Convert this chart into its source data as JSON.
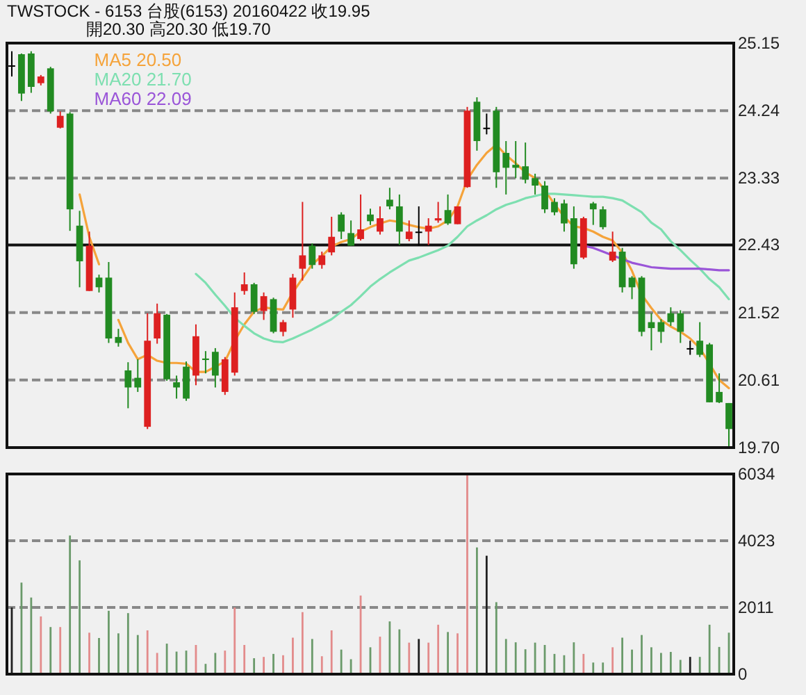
{
  "chart_data": [
    {
      "type": "candlestick",
      "title": "TWSTOCK - 6153 台股(6153) 20160422 收19.95",
      "subtitle": "開20.30 高20.30 低19.70",
      "categories": [
        null,
        null,
        null,
        null,
        null,
        null,
        null,
        null,
        null,
        null,
        null,
        null,
        null,
        null,
        null,
        null,
        null,
        null,
        null,
        null,
        null,
        null,
        null,
        null,
        null,
        null,
        null,
        null,
        null,
        null,
        null,
        null,
        null,
        null,
        null,
        null,
        null,
        null,
        null,
        null,
        null,
        null,
        null,
        null,
        null,
        null,
        null,
        null,
        null,
        null,
        null,
        null,
        null,
        null,
        null,
        null,
        null,
        null,
        null,
        null,
        null,
        null,
        null,
        null,
        null,
        null,
        null,
        null,
        null,
        null,
        null,
        null,
        null,
        null,
        null
      ],
      "ohlc": [
        [
          24.85,
          25.04,
          24.7,
          24.85
        ],
        [
          25.0,
          25.01,
          24.37,
          24.47
        ],
        [
          25.01,
          25.04,
          24.48,
          24.56
        ],
        [
          24.61,
          24.72,
          24.58,
          24.7
        ],
        [
          24.81,
          24.83,
          24.2,
          24.23
        ],
        [
          24.01,
          24.23,
          24.0,
          24.17
        ],
        [
          24.2,
          24.22,
          22.62,
          22.91
        ],
        [
          22.69,
          22.89,
          21.86,
          22.21
        ],
        [
          21.81,
          22.61,
          21.81,
          22.42
        ],
        [
          21.99,
          22.03,
          21.79,
          21.86
        ],
        [
          21.99,
          22.2,
          21.11,
          21.17
        ],
        [
          21.19,
          21.3,
          21.06,
          21.11
        ],
        [
          20.74,
          20.85,
          20.23,
          20.51
        ],
        [
          20.64,
          20.89,
          20.45,
          20.51
        ],
        [
          19.98,
          21.51,
          19.95,
          21.14
        ],
        [
          21.17,
          21.64,
          21.1,
          21.51
        ],
        [
          21.49,
          21.5,
          20.6,
          20.62
        ],
        [
          20.58,
          20.67,
          20.36,
          20.51
        ],
        [
          20.79,
          20.86,
          20.33,
          20.36
        ],
        [
          20.67,
          21.36,
          20.54,
          21.2
        ],
        [
          20.9,
          21.0,
          20.7,
          20.88
        ],
        [
          20.99,
          21.04,
          20.51,
          20.67
        ],
        [
          20.45,
          20.92,
          20.41,
          20.89
        ],
        [
          20.71,
          21.79,
          20.67,
          21.59
        ],
        [
          21.81,
          22.06,
          21.76,
          21.9
        ],
        [
          21.9,
          21.92,
          21.5,
          21.53
        ],
        [
          21.54,
          21.79,
          21.42,
          21.74
        ],
        [
          21.7,
          21.72,
          21.24,
          21.26
        ],
        [
          21.26,
          21.42,
          21.2,
          21.39
        ],
        [
          21.56,
          22.04,
          21.45,
          21.99
        ],
        [
          22.11,
          23.01,
          21.95,
          22.29
        ],
        [
          22.42,
          22.45,
          22.11,
          22.16
        ],
        [
          22.16,
          22.34,
          22.11,
          22.29
        ],
        [
          22.33,
          22.81,
          22.29,
          22.54
        ],
        [
          22.84,
          22.87,
          22.51,
          22.61
        ],
        [
          22.59,
          22.76,
          22.42,
          22.42
        ],
        [
          22.51,
          23.11,
          22.49,
          22.64
        ],
        [
          22.84,
          22.92,
          22.7,
          22.75
        ],
        [
          22.61,
          22.95,
          22.57,
          22.79
        ],
        [
          23.04,
          23.2,
          22.91,
          22.95
        ],
        [
          22.95,
          23.11,
          22.43,
          22.61
        ],
        [
          22.51,
          22.76,
          22.48,
          22.61
        ],
        [
          22.61,
          22.95,
          22.42,
          22.61
        ],
        [
          22.61,
          22.79,
          22.43,
          22.69
        ],
        [
          22.76,
          23.01,
          22.73,
          22.79
        ],
        [
          22.9,
          23.11,
          22.7,
          22.72
        ],
        [
          22.71,
          22.95,
          22.71,
          22.95
        ],
        [
          23.21,
          24.29,
          23.2,
          24.24
        ],
        [
          24.36,
          24.42,
          23.7,
          23.83
        ],
        [
          24.01,
          24.2,
          23.92,
          24.01
        ],
        [
          24.24,
          24.29,
          23.2,
          23.41
        ],
        [
          23.67,
          23.83,
          23.11,
          23.47
        ],
        [
          23.51,
          23.83,
          23.33,
          23.47
        ],
        [
          23.49,
          23.81,
          23.26,
          23.31
        ],
        [
          23.33,
          23.39,
          23.11,
          23.23
        ],
        [
          23.23,
          23.29,
          22.86,
          22.91
        ],
        [
          23.01,
          23.06,
          22.83,
          22.87
        ],
        [
          22.99,
          23.04,
          22.61,
          22.72
        ],
        [
          22.79,
          22.95,
          22.11,
          22.17
        ],
        [
          22.26,
          22.81,
          22.24,
          22.79
        ],
        [
          22.99,
          23.01,
          22.7,
          22.91
        ],
        [
          22.91,
          22.95,
          22.64,
          22.67
        ],
        [
          22.22,
          22.61,
          22.2,
          22.34
        ],
        [
          22.34,
          22.39,
          21.79,
          21.86
        ],
        [
          21.99,
          22.01,
          21.7,
          21.86
        ],
        [
          21.99,
          22.01,
          21.2,
          21.26
        ],
        [
          21.39,
          21.51,
          21.01,
          21.31
        ],
        [
          21.39,
          21.43,
          21.11,
          21.26
        ],
        [
          21.51,
          21.59,
          21.34,
          21.39
        ],
        [
          21.51,
          21.55,
          21.11,
          21.26
        ],
        [
          21.04,
          21.14,
          20.95,
          21.04
        ],
        [
          21.14,
          21.39,
          20.92,
          20.95
        ],
        [
          21.09,
          21.11,
          20.31,
          20.31
        ],
        [
          20.45,
          20.7,
          20.3,
          20.31
        ],
        [
          20.3,
          20.3,
          19.7,
          19.95
        ]
      ],
      "colors": [
        "#000000",
        "#228b22",
        "#228b22",
        "#dd2020",
        "#228b22",
        "#dd2020",
        "#228b22",
        "#228b22",
        "#dd2020",
        "#228b22",
        "#228b22",
        "#228b22",
        "#228b22",
        "#228b22",
        "#dd2020",
        "#dd2020",
        "#228b22",
        "#228b22",
        "#228b22",
        "#dd2020",
        "#228b22",
        "#228b22",
        "#dd2020",
        "#dd2020",
        "#dd2020",
        "#228b22",
        "#dd2020",
        "#228b22",
        "#dd2020",
        "#dd2020",
        "#dd2020",
        "#228b22",
        "#dd2020",
        "#dd2020",
        "#228b22",
        "#228b22",
        "#dd2020",
        "#228b22",
        "#dd2020",
        "#228b22",
        "#228b22",
        "#dd2020",
        "#000000",
        "#dd2020",
        "#dd2020",
        "#228b22",
        "#dd2020",
        "#dd2020",
        "#228b22",
        "#000000",
        "#228b22",
        "#228b22",
        "#228b22",
        "#228b22",
        "#228b22",
        "#228b22",
        "#228b22",
        "#228b22",
        "#228b22",
        "#dd2020",
        "#228b22",
        "#228b22",
        "#dd2020",
        "#228b22",
        "#228b22",
        "#228b22",
        "#228b22",
        "#228b22",
        "#228b22",
        "#228b22",
        "#000000",
        "#228b22",
        "#228b22",
        "#228b22",
        "#228b22"
      ],
      "series": [
        {
          "name": "MA5 20.50",
          "type": "line",
          "color": "#f5a33a",
          "values": [
            null,
            null,
            null,
            null,
            null,
            null,
            null,
            23.11,
            22.54,
            22.17,
            null,
            21.42,
            21.11,
            20.89,
            20.95,
            20.87,
            20.84,
            20.84,
            20.83,
            20.72,
            20.72,
            20.79,
            20.86,
            21.14,
            21.36,
            21.53,
            21.59,
            21.57,
            21.56,
            21.79,
            21.98,
            22.17,
            22.28,
            22.41,
            22.47,
            22.51,
            22.61,
            22.67,
            22.72,
            22.76,
            22.74,
            22.7,
            22.67,
            22.65,
            22.68,
            22.76,
            22.95,
            23.31,
            23.51,
            23.67,
            23.78,
            23.64,
            23.53,
            23.41,
            23.33,
            23.17,
            22.98,
            22.81,
            22.68,
            22.66,
            22.61,
            22.54,
            22.49,
            22.33,
            22.08,
            21.76,
            21.58,
            21.42,
            21.33,
            21.26,
            21.17,
            21.04,
            20.83,
            20.61,
            20.5
          ]
        },
        {
          "name": "MA20 21.70",
          "type": "line",
          "color": "#7ddfb0",
          "values": [
            null,
            null,
            null,
            null,
            null,
            null,
            null,
            null,
            null,
            null,
            null,
            null,
            null,
            null,
            null,
            null,
            null,
            null,
            null,
            22.04,
            21.92,
            21.76,
            21.61,
            21.45,
            21.34,
            21.24,
            21.17,
            21.13,
            21.12,
            21.17,
            21.23,
            21.29,
            21.36,
            21.43,
            21.53,
            21.62,
            21.74,
            21.87,
            21.97,
            22.06,
            22.14,
            22.22,
            22.26,
            22.31,
            22.36,
            22.42,
            22.54,
            22.68,
            22.76,
            22.83,
            22.91,
            22.97,
            23.01,
            23.06,
            23.09,
            23.12,
            23.12,
            23.11,
            23.1,
            23.09,
            23.08,
            23.08,
            23.06,
            23.03,
            22.95,
            22.87,
            22.73,
            22.64,
            22.48,
            22.36,
            22.23,
            22.11,
            21.97,
            21.86,
            21.7
          ]
        },
        {
          "name": "MA60 22.09",
          "type": "line",
          "color": "#9a55d8",
          "values": [
            null,
            null,
            null,
            null,
            null,
            null,
            null,
            null,
            null,
            null,
            null,
            null,
            null,
            null,
            null,
            null,
            null,
            null,
            null,
            null,
            null,
            null,
            null,
            null,
            null,
            null,
            null,
            null,
            null,
            null,
            null,
            null,
            null,
            null,
            null,
            null,
            null,
            null,
            null,
            null,
            null,
            null,
            null,
            null,
            null,
            null,
            null,
            null,
            null,
            null,
            null,
            null,
            null,
            null,
            null,
            null,
            null,
            null,
            null,
            22.42,
            22.39,
            22.34,
            22.29,
            22.24,
            22.19,
            22.16,
            22.13,
            22.12,
            22.11,
            22.11,
            22.11,
            22.11,
            22.1,
            22.09,
            22.09
          ]
        }
      ],
      "ylim": [
        19.7,
        25.15
      ],
      "yticks": [
        {
          "value": 19.7,
          "label": "19.70"
        },
        20.61,
        21.52,
        22.43,
        23.33,
        24.24,
        25.15
      ],
      "ref_lines": [
        {
          "axis": "y",
          "value": 22.43,
          "color": "#111111",
          "line_style": "solid"
        }
      ],
      "grid": "y",
      "legend": "top left",
      "tick_labels": "y"
    },
    {
      "type": "bar",
      "categories": [
        null,
        null,
        null,
        null,
        null,
        null,
        null,
        null,
        null,
        null,
        null,
        null,
        null,
        null,
        null,
        null,
        null,
        null,
        null,
        null,
        null,
        null,
        null,
        null,
        null,
        null,
        null,
        null,
        null,
        null,
        null,
        null,
        null,
        null,
        null,
        null,
        null,
        null,
        null,
        null,
        null,
        null,
        null,
        null,
        null,
        null,
        null,
        null,
        null,
        null,
        null,
        null,
        null,
        null,
        null,
        null,
        null,
        null,
        null,
        null,
        null,
        null,
        null,
        null,
        null,
        null,
        null,
        null,
        null,
        null,
        null,
        null,
        null,
        null,
        null
      ],
      "values": [
        2010,
        2760,
        2310,
        1740,
        1420,
        1420,
        4180,
        3430,
        1250,
        1090,
        1910,
        1230,
        1840,
        1180,
        1320,
        640,
        920,
        680,
        710,
        880,
        310,
        640,
        710,
        2010,
        880,
        480,
        520,
        610,
        570,
        1100,
        1870,
        1060,
        540,
        1320,
        740,
        450,
        2370,
        810,
        1130,
        1590,
        1350,
        950,
        1060,
        950,
        1490,
        1270,
        1230,
        6030,
        3820,
        3570,
        2170,
        1060,
        960,
        750,
        950,
        880,
        610,
        570,
        960,
        610,
        350,
        350,
        810,
        1100,
        740,
        1180,
        810,
        640,
        670,
        430,
        520,
        520,
        1490,
        820,
        1250
      ],
      "colors": [
        "#202020",
        "#6a9a6a",
        "#6a9a6a",
        "#e38b8b",
        "#6a9a6a",
        "#e38b8b",
        "#6a9a6a",
        "#6a9a6a",
        "#e38b8b",
        "#6a9a6a",
        "#6a9a6a",
        "#6a9a6a",
        "#6a9a6a",
        "#6a9a6a",
        "#e38b8b",
        "#e38b8b",
        "#6a9a6a",
        "#6a9a6a",
        "#6a9a6a",
        "#e38b8b",
        "#6a9a6a",
        "#6a9a6a",
        "#e38b8b",
        "#e38b8b",
        "#e38b8b",
        "#6a9a6a",
        "#e38b8b",
        "#6a9a6a",
        "#e38b8b",
        "#e38b8b",
        "#e38b8b",
        "#6a9a6a",
        "#e38b8b",
        "#e38b8b",
        "#6a9a6a",
        "#6a9a6a",
        "#e38b8b",
        "#6a9a6a",
        "#e38b8b",
        "#6a9a6a",
        "#6a9a6a",
        "#e38b8b",
        "#202020",
        "#e38b8b",
        "#e38b8b",
        "#6a9a6a",
        "#e38b8b",
        "#e38b8b",
        "#6a9a6a",
        "#202020",
        "#6a9a6a",
        "#6a9a6a",
        "#6a9a6a",
        "#6a9a6a",
        "#6a9a6a",
        "#6a9a6a",
        "#6a9a6a",
        "#6a9a6a",
        "#6a9a6a",
        "#e38b8b",
        "#6a9a6a",
        "#6a9a6a",
        "#e38b8b",
        "#6a9a6a",
        "#6a9a6a",
        "#6a9a6a",
        "#6a9a6a",
        "#6a9a6a",
        "#6a9a6a",
        "#6a9a6a",
        "#202020",
        "#6a9a6a",
        "#6a9a6a",
        "#6a9a6a",
        "#6a9a6a"
      ],
      "ylim": [
        0,
        6034
      ],
      "yticks": [
        0,
        2011,
        4023,
        6034
      ],
      "grid": "y",
      "tick_labels": "y"
    }
  ]
}
